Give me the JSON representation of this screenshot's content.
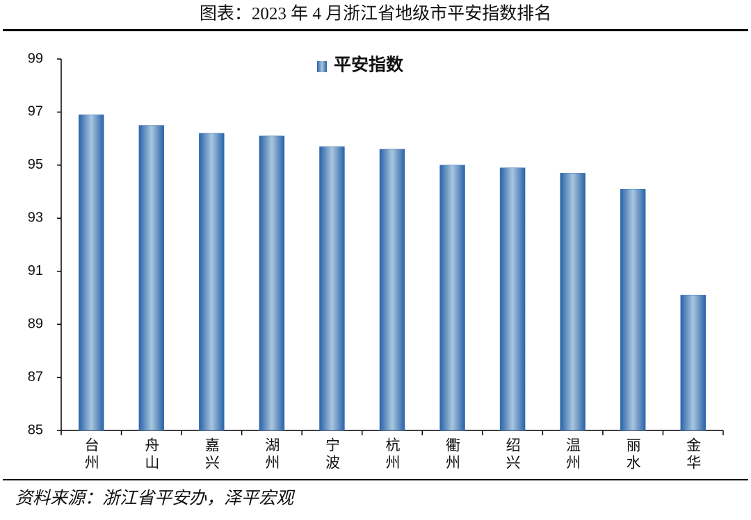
{
  "chart_data": {
    "type": "bar",
    "title": "图表：2023 年 4 月浙江省地级市平安指数排名",
    "source": "资料来源：浙江省平安办，泽平宏观",
    "categories": [
      "台州",
      "舟山",
      "嘉兴",
      "湖州",
      "宁波",
      "杭州",
      "衢州",
      "绍兴",
      "温州",
      "丽水",
      "金华"
    ],
    "series": [
      {
        "name": "平安指数",
        "color": "#3a78bd",
        "values": [
          96.9,
          96.5,
          96.2,
          96.1,
          95.7,
          95.6,
          95.0,
          94.9,
          94.7,
          94.1,
          90.1
        ]
      }
    ],
    "ylim": [
      85,
      99
    ],
    "yticks": [
      85,
      87,
      89,
      91,
      93,
      95,
      97,
      99
    ],
    "grid": false,
    "legend": "top"
  }
}
